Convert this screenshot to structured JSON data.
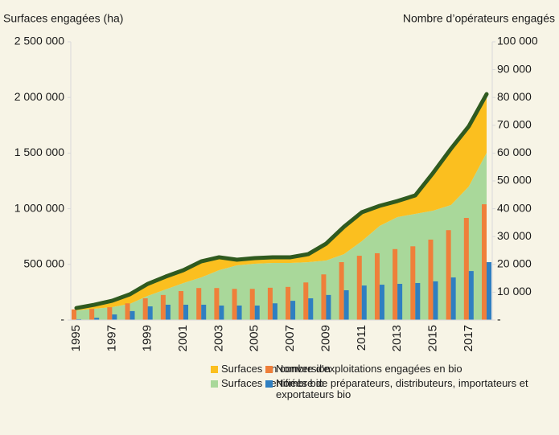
{
  "chart_data": {
    "type": "combo",
    "y_label": "Surfaces engagées (ha)",
    "y2_label": "Nombre d’opérateurs engagés",
    "categories": [
      "1995",
      null,
      "1997",
      null,
      "1999",
      null,
      "2001",
      null,
      "2003",
      null,
      "2005",
      null,
      "2007",
      null,
      "2009",
      null,
      "2011",
      null,
      "2013",
      null,
      "2015",
      null,
      "2017",
      null
    ],
    "ylim": [
      0,
      2500000
    ],
    "yticks": [
      {
        "value": 0,
        "label": "-"
      },
      {
        "value": 500000,
        "label": "500 000"
      },
      {
        "value": 1000000,
        "label": "1 000 000"
      },
      {
        "value": 1500000,
        "label": "1 500 000"
      },
      {
        "value": 2000000,
        "label": "2 000 000"
      },
      {
        "value": 2500000,
        "label": "2 500 000"
      }
    ],
    "y2lim": [
      0,
      100000
    ],
    "y2ticks": [
      {
        "value": 0,
        "label": "-"
      },
      {
        "value": 10000,
        "label": "10 000"
      },
      {
        "value": 20000,
        "label": "20 000"
      },
      {
        "value": 30000,
        "label": "30 000"
      },
      {
        "value": 40000,
        "label": "40 000"
      },
      {
        "value": 50000,
        "label": "50 000"
      },
      {
        "value": 60000,
        "label": "60 000"
      },
      {
        "value": 70000,
        "label": "70 000"
      },
      {
        "value": 80000,
        "label": "80 000"
      },
      {
        "value": 90000,
        "label": "90 000"
      },
      {
        "value": 100000,
        "label": "100 000"
      }
    ],
    "outline_color": "#2f5a1f",
    "series": [
      {
        "name": "Surfaces en conversion",
        "type": "area",
        "color": "#fbbf1f",
        "values": [
          21000,
          36000,
          57000,
          86000,
          108000,
          115000,
          116000,
          144000,
          116000,
          51000,
          50000,
          51000,
          51000,
          72000,
          151000,
          246000,
          260000,
          181000,
          144000,
          166000,
          339000,
          506000,
          542000,
          527000
        ]
      },
      {
        "name": "Surfaces certifiées bio",
        "type": "area",
        "color": "#a9d89a",
        "values": [
          87000,
          101000,
          116000,
          145000,
          217000,
          275000,
          332000,
          383000,
          448000,
          491000,
          506000,
          513000,
          513000,
          520000,
          535000,
          592000,
          708000,
          845000,
          925000,
          954000,
          983000,
          1033000,
          1199000,
          1503000
        ]
      },
      {
        "name": "Nombre d'exploitations engagées en bio",
        "type": "bar",
        "axis": "y2",
        "color": "#ef7f3a",
        "values": [
          3800,
          4000,
          4600,
          6000,
          7800,
          9000,
          10400,
          11500,
          11500,
          11200,
          11200,
          11600,
          11900,
          13500,
          16400,
          20800,
          23100,
          24000,
          25500,
          26500,
          28900,
          32300,
          36700,
          41600
        ]
      },
      {
        "name": "Nombre de préparateurs, distributeurs, importateurs et exportateurs bio",
        "type": "bar",
        "axis": "y2",
        "color": "#2f7fc1",
        "values": [
          300,
          800,
          2000,
          3200,
          4900,
          5500,
          5500,
          5500,
          5200,
          5200,
          5200,
          6000,
          6900,
          7800,
          9000,
          10700,
          12400,
          12700,
          13000,
          13300,
          13900,
          15300,
          17600,
          20800
        ]
      }
    ]
  }
}
